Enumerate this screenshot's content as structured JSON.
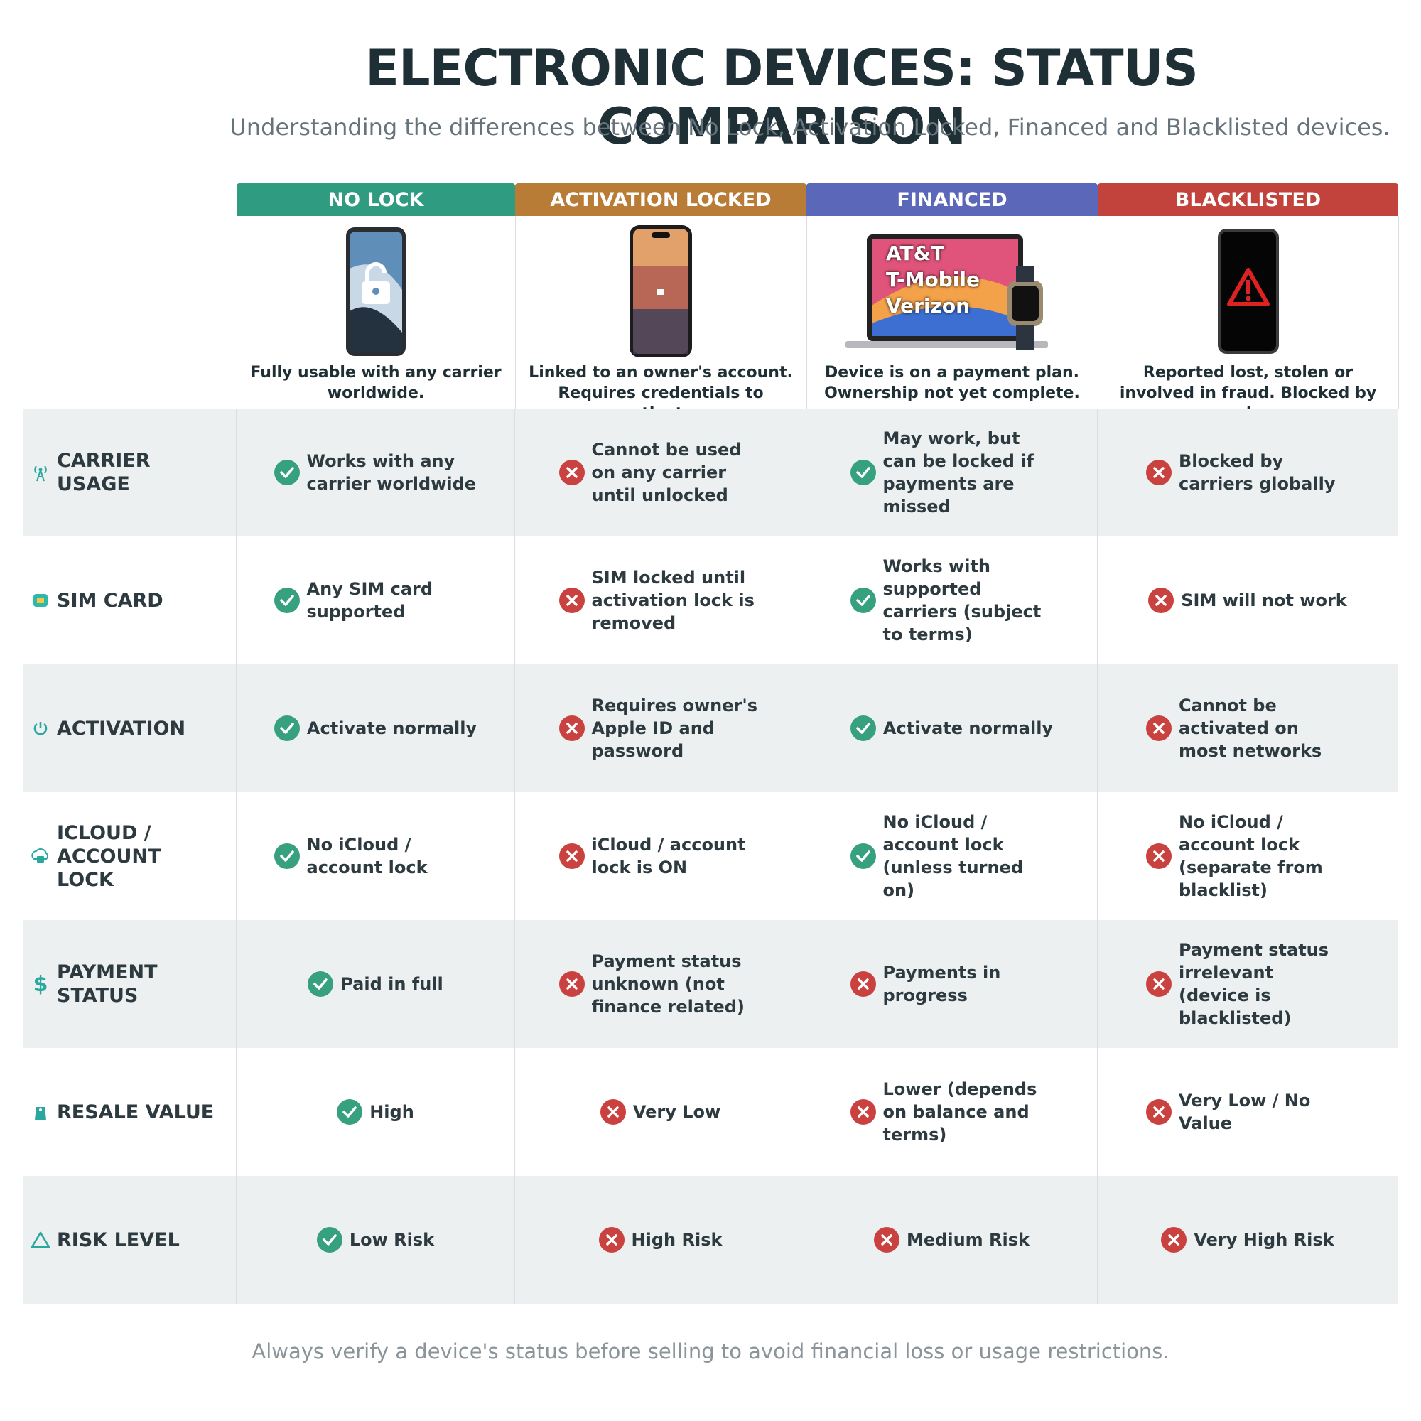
{
  "header": {
    "title": "ELECTRONIC DEVICES: STATUS COMPARISON",
    "subtitle": "Understanding the differences between No Lock, Activation Locked, Financed and Blacklisted devices."
  },
  "columns": [
    {
      "name": "NO LOCK",
      "color": "#2f9b80",
      "description": "Fully usable with any carrier worldwide."
    },
    {
      "name": "ACTIVATION LOCKED",
      "color": "#b97c36",
      "description": "Linked to an owner's account. Requires credentials to activate."
    },
    {
      "name": "FINANCED",
      "color": "#5b67b9",
      "description": "Device is on a payment plan. Ownership not yet complete.",
      "image_text": [
        "AT&T",
        "T-Mobile",
        "Verizon"
      ]
    },
    {
      "name": "BLACKLISTED",
      "color": "#c2423c",
      "description": "Reported lost, stolen or involved in fraud. Blocked by carriers."
    }
  ],
  "rows": [
    {
      "label": "CARRIER USAGE",
      "cells": [
        {
          "ok": true,
          "text": "Works with any carrier worldwide"
        },
        {
          "ok": false,
          "text": "Cannot be used on any carrier until unlocked"
        },
        {
          "ok": true,
          "text": "May work, but can be locked if payments are missed"
        },
        {
          "ok": false,
          "text": "Blocked by carriers globally"
        }
      ]
    },
    {
      "label": "SIM CARD",
      "cells": [
        {
          "ok": true,
          "text": "Any SIM card supported"
        },
        {
          "ok": false,
          "text": "SIM locked until activation lock is removed"
        },
        {
          "ok": true,
          "text": "Works with supported carriers (subject to terms)"
        },
        {
          "ok": false,
          "text": "SIM will not work"
        }
      ]
    },
    {
      "label": "ACTIVATION",
      "cells": [
        {
          "ok": true,
          "text": "Activate normally"
        },
        {
          "ok": false,
          "text": "Requires owner's Apple ID and password"
        },
        {
          "ok": true,
          "text": "Activate normally"
        },
        {
          "ok": false,
          "text": "Cannot be activated on most networks"
        }
      ]
    },
    {
      "label": "ICLOUD / ACCOUNT LOCK",
      "cells": [
        {
          "ok": true,
          "text": "No iCloud / account lock"
        },
        {
          "ok": false,
          "text": "iCloud / account lock is ON"
        },
        {
          "ok": true,
          "text": "No iCloud / account lock (unless turned on)"
        },
        {
          "ok": false,
          "text": "No iCloud / account lock (separate from blacklist)"
        }
      ]
    },
    {
      "label": "PAYMENT STATUS",
      "cells": [
        {
          "ok": true,
          "text": "Paid in full"
        },
        {
          "ok": false,
          "text": "Payment status unknown (not finance related)"
        },
        {
          "ok": false,
          "text": "Payments in progress"
        },
        {
          "ok": false,
          "text": "Payment status irrelevant (device is blacklisted)"
        }
      ]
    },
    {
      "label": "RESALE VALUE",
      "cells": [
        {
          "ok": true,
          "text": "High"
        },
        {
          "ok": false,
          "text": "Very Low"
        },
        {
          "ok": false,
          "text": "Lower (depends on balance and terms)"
        },
        {
          "ok": false,
          "text": "Very Low / No Value"
        }
      ]
    },
    {
      "label": "RISK LEVEL",
      "cells": [
        {
          "ok": true,
          "text": "Low Risk"
        },
        {
          "ok": false,
          "text": "High Risk"
        },
        {
          "ok": false,
          "text": "Medium Risk"
        },
        {
          "ok": false,
          "text": "Very High Risk"
        }
      ]
    }
  ],
  "footer": "Always verify a device's status before selling to avoid financial loss or usage restrictions."
}
